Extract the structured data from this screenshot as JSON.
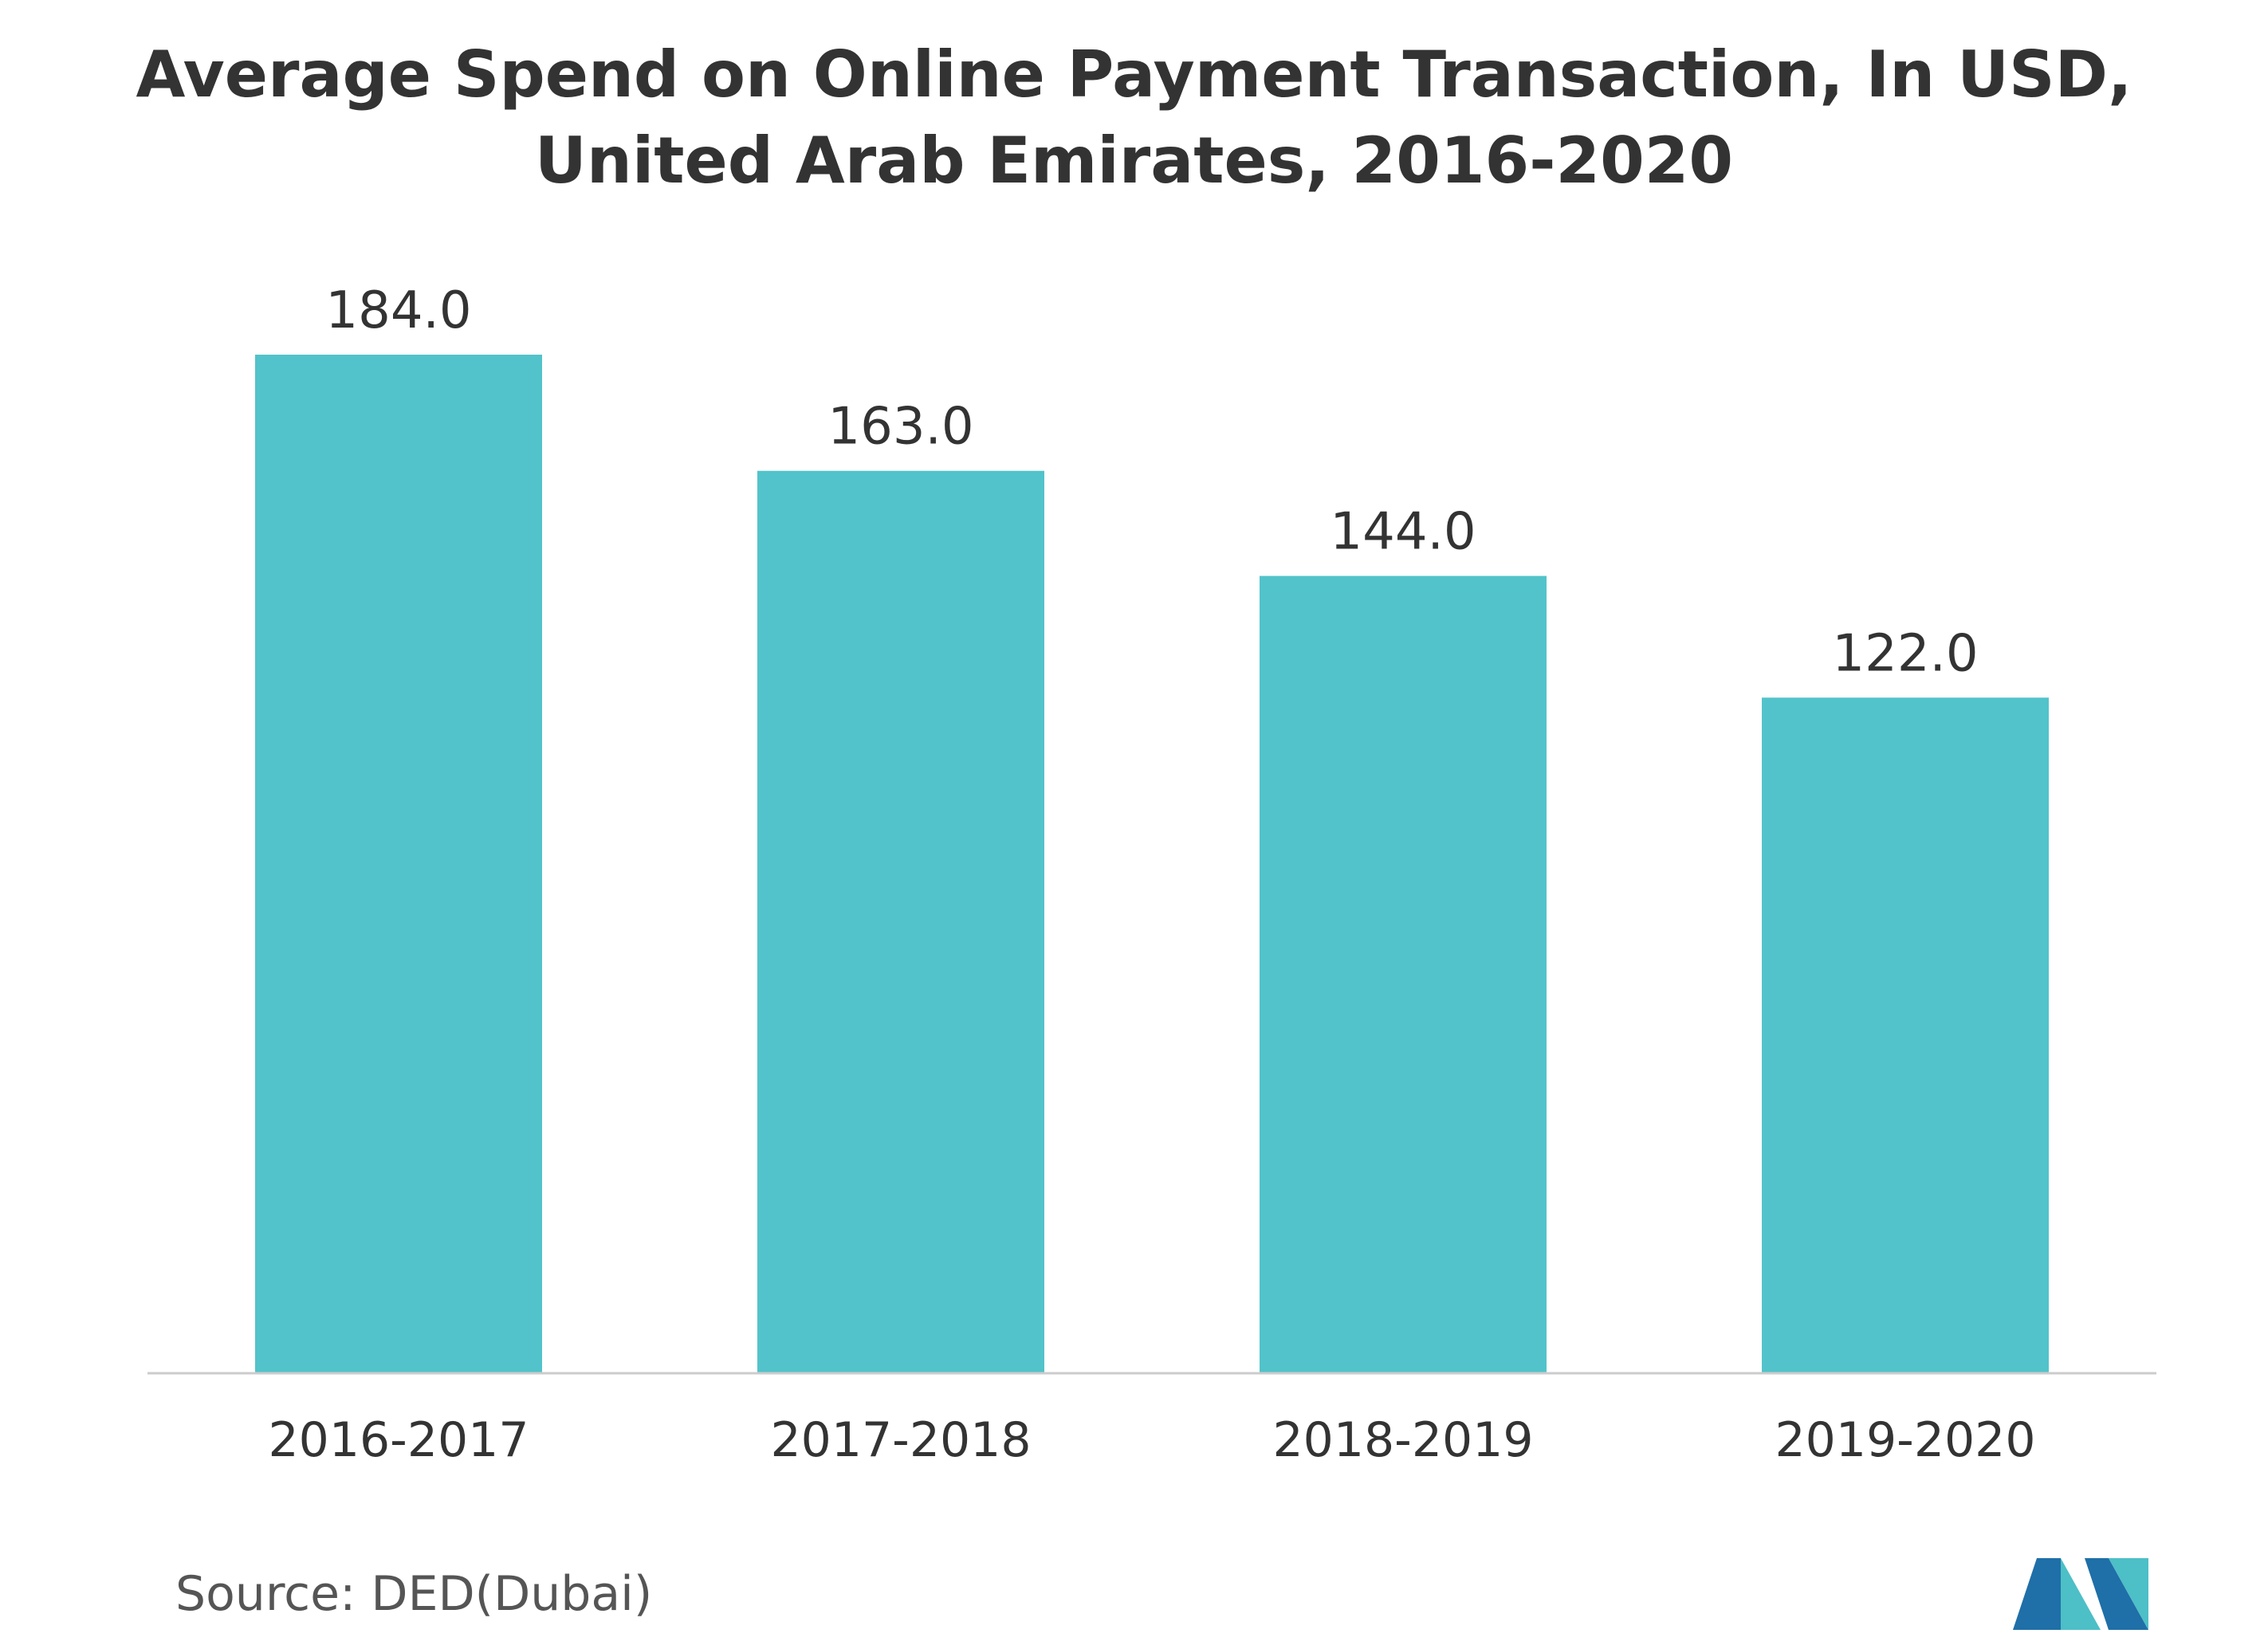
{
  "title_lines": [
    "Average Spend on Online Payment Transaction, In USD,",
    "United Arab Emirates, 2016-2020"
  ],
  "source": "Source: DED(Dubai)",
  "logo": {
    "icon": "mordor-intelligence-logo-icon",
    "colors": [
      "#1f6fa8",
      "#4dbfc6"
    ]
  },
  "chart_data": {
    "type": "bar",
    "title": "Average Spend on Online Payment Transaction, In USD, United Arab Emirates, 2016-2020",
    "categories": [
      "2016-2017",
      "2017-2018",
      "2018-2019",
      "2019-2020"
    ],
    "values": [
      184.0,
      163.0,
      144.0,
      122.0
    ],
    "value_labels": [
      "184.0",
      "163.0",
      "144.0",
      "122.0"
    ],
    "xlabel": "",
    "ylabel": "",
    "ylim": [
      0,
      184
    ],
    "grid": false,
    "legend": "none",
    "bar_color": "#52c3ca",
    "axis_color": "#cccccc"
  }
}
